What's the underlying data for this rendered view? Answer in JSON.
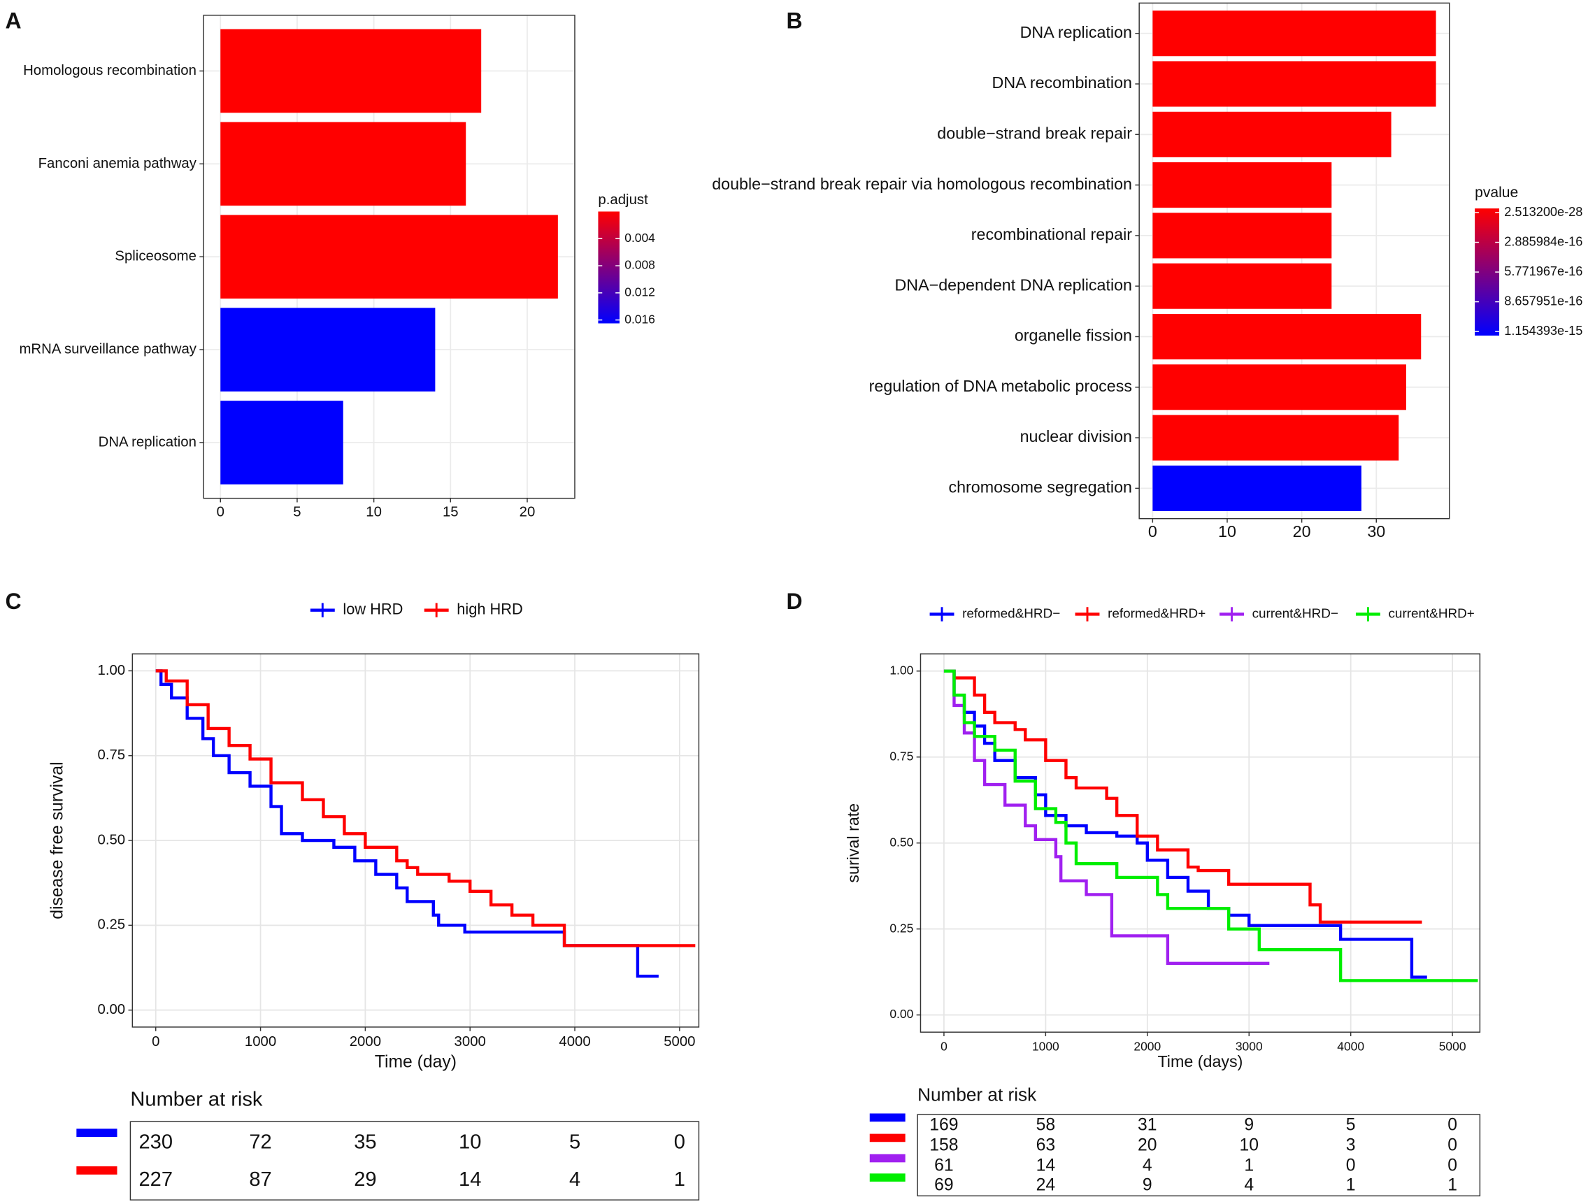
{
  "chart_data": [
    {
      "type": "bar",
      "label": "A",
      "categories": [
        "Homologous recombination",
        "Fanconi anemia pathway",
        "Spliceosome",
        "mRNA surveillance pathway",
        "DNA replication"
      ],
      "values": [
        17,
        16,
        22,
        14,
        8
      ],
      "colors": [
        "#ff0000",
        "#ff0000",
        "#ff0000",
        "#0000ff",
        "#0000ff"
      ],
      "xlim": [
        -1.1,
        23.1
      ],
      "xticks": [
        0,
        5,
        10,
        15,
        20
      ],
      "grid": true,
      "colorbar": {
        "title": "p.adjust",
        "lim": [
          0,
          0.0165
        ],
        "ticks": [
          0.004,
          0.008,
          0.012,
          0.016
        ],
        "colors": [
          "#ff0000",
          "#0000ff"
        ]
      }
    },
    {
      "type": "bar",
      "label": "B",
      "categories": [
        "DNA replication",
        "DNA recombination",
        "double−strand break repair",
        "double−strand break repair via homologous recombination",
        "recombinational repair",
        "DNA−dependent DNA replication",
        "organelle fission",
        "regulation of DNA metabolic process",
        "nuclear division",
        "chromosome segregation"
      ],
      "values": [
        38,
        38,
        32,
        24,
        24,
        24,
        36,
        34,
        33,
        28
      ],
      "colors": [
        "#ff0000",
        "#ff0000",
        "#ff0000",
        "#ff0000",
        "#ff0000",
        "#ff0000",
        "#ff0000",
        "#ff0000",
        "#ff0000",
        "#0000ff"
      ],
      "xlim": [
        -1.8,
        39.8
      ],
      "xticks": [
        0,
        10,
        20,
        30
      ],
      "grid": true,
      "colorbar": {
        "title": "pvalue",
        "lim": [
          -4e-17,
          1.194e-15
        ],
        "ticks": [
          {
            "value": 2.5132e-28,
            "label": "2.513200e-28"
          },
          {
            "value": 2.885984e-16,
            "label": "2.885984e-16"
          },
          {
            "value": 5.771967e-16,
            "label": "5.771967e-16"
          },
          {
            "value": 8.657951e-16,
            "label": "8.657951e-16"
          },
          {
            "value": 1.154393e-15,
            "label": "1.154393e-15"
          }
        ],
        "colors": [
          "#ff0000",
          "#0000ff"
        ]
      }
    },
    {
      "type": "survival",
      "label": "C",
      "xlabel": "Time (day)",
      "ylabel": "disease free survival",
      "xlim": [
        -223,
        5184
      ],
      "ylim": [
        -0.05,
        1.05
      ],
      "xticks": [
        0,
        1000,
        2000,
        3000,
        4000,
        5000
      ],
      "yticks": [
        {
          "value": 0,
          "label": "0.00"
        },
        {
          "value": 0.25,
          "label": "0.25"
        },
        {
          "value": 0.5,
          "label": "0.50"
        },
        {
          "value": 0.75,
          "label": "0.75"
        },
        {
          "value": 1,
          "label": "1.00"
        }
      ],
      "grid": true,
      "series": [
        {
          "name": "low HRD",
          "color": "#0000ff",
          "x": [
            0,
            50,
            150,
            300,
            450,
            550,
            700,
            900,
            1100,
            1200,
            1400,
            1700,
            1900,
            2100,
            2300,
            2400,
            2650,
            2700,
            2950,
            3900,
            4600,
            4800
          ],
          "values": [
            1,
            0.96,
            0.92,
            0.86,
            0.8,
            0.75,
            0.7,
            0.66,
            0.6,
            0.52,
            0.5,
            0.48,
            0.44,
            0.4,
            0.36,
            0.32,
            0.28,
            0.25,
            0.23,
            0.19,
            0.1,
            0.1
          ]
        },
        {
          "name": "high HRD",
          "color": "#ff0000",
          "x": [
            0,
            100,
            300,
            500,
            700,
            900,
            1100,
            1400,
            1600,
            1800,
            2000,
            2300,
            2400,
            2500,
            2800,
            3000,
            3200,
            3400,
            3600,
            3900,
            5150
          ],
          "values": [
            1,
            0.97,
            0.9,
            0.83,
            0.78,
            0.74,
            0.67,
            0.62,
            0.57,
            0.52,
            0.48,
            0.44,
            0.42,
            0.4,
            0.38,
            0.35,
            0.31,
            0.28,
            0.25,
            0.19,
            0.19
          ]
        }
      ],
      "risk_table": {
        "title": "Number at risk",
        "counts": [
          [
            230,
            72,
            35,
            10,
            5,
            0
          ],
          [
            227,
            87,
            29,
            14,
            4,
            1
          ]
        ]
      }
    },
    {
      "type": "survival",
      "label": "D",
      "xlabel": "Time (days)",
      "ylabel": "surival rate",
      "xlim": [
        -230,
        5270
      ],
      "ylim": [
        -0.05,
        1.05
      ],
      "xticks": [
        0,
        1000,
        2000,
        3000,
        4000,
        5000
      ],
      "yticks": [
        {
          "value": 0,
          "label": "0.00"
        },
        {
          "value": 0.25,
          "label": "0.25"
        },
        {
          "value": 0.5,
          "label": "0.50"
        },
        {
          "value": 0.75,
          "label": "0.75"
        },
        {
          "value": 1,
          "label": "1.00"
        }
      ],
      "grid": true,
      "series": [
        {
          "name": "reformed&HRD−",
          "color": "#0000ff",
          "x": [
            0,
            100,
            200,
            300,
            400,
            500,
            700,
            900,
            1000,
            1200,
            1400,
            1700,
            1900,
            2000,
            2200,
            2400,
            2600,
            2800,
            3000,
            3900,
            4600,
            4750
          ],
          "values": [
            1,
            0.93,
            0.88,
            0.84,
            0.79,
            0.74,
            0.69,
            0.64,
            0.58,
            0.55,
            0.53,
            0.52,
            0.5,
            0.45,
            0.4,
            0.36,
            0.31,
            0.29,
            0.26,
            0.22,
            0.11,
            0.11
          ]
        },
        {
          "name": "reformed&HRD+",
          "color": "#ff0000",
          "x": [
            0,
            100,
            300,
            400,
            500,
            700,
            800,
            1000,
            1200,
            1300,
            1600,
            1700,
            1900,
            2100,
            2400,
            2500,
            2800,
            3600,
            3700,
            4700
          ],
          "values": [
            1,
            0.98,
            0.93,
            0.88,
            0.85,
            0.83,
            0.8,
            0.74,
            0.69,
            0.66,
            0.63,
            0.58,
            0.52,
            0.48,
            0.43,
            0.42,
            0.38,
            0.32,
            0.27,
            0.27
          ]
        },
        {
          "name": "current&HRD−",
          "color": "#a020f0",
          "x": [
            0,
            100,
            200,
            300,
            400,
            600,
            800,
            900,
            1100,
            1150,
            1400,
            1650,
            2200,
            3200
          ],
          "values": [
            1,
            0.9,
            0.82,
            0.74,
            0.67,
            0.61,
            0.55,
            0.51,
            0.46,
            0.39,
            0.35,
            0.23,
            0.15,
            0.15
          ]
        },
        {
          "name": "current&HRD+",
          "color": "#00ee00",
          "x": [
            0,
            100,
            200,
            300,
            500,
            700,
            900,
            1100,
            1200,
            1300,
            1700,
            2100,
            2200,
            2800,
            3100,
            3900,
            5250
          ],
          "values": [
            1,
            0.93,
            0.85,
            0.81,
            0.77,
            0.68,
            0.6,
            0.56,
            0.5,
            0.44,
            0.4,
            0.35,
            0.31,
            0.25,
            0.19,
            0.1,
            0.1
          ]
        }
      ],
      "risk_table": {
        "title": "Number at risk",
        "counts": [
          [
            169,
            58,
            31,
            9,
            5,
            0
          ],
          [
            158,
            63,
            20,
            10,
            3,
            0
          ],
          [
            61,
            14,
            4,
            1,
            0,
            0
          ],
          [
            69,
            24,
            9,
            4,
            1,
            1
          ]
        ]
      }
    }
  ]
}
